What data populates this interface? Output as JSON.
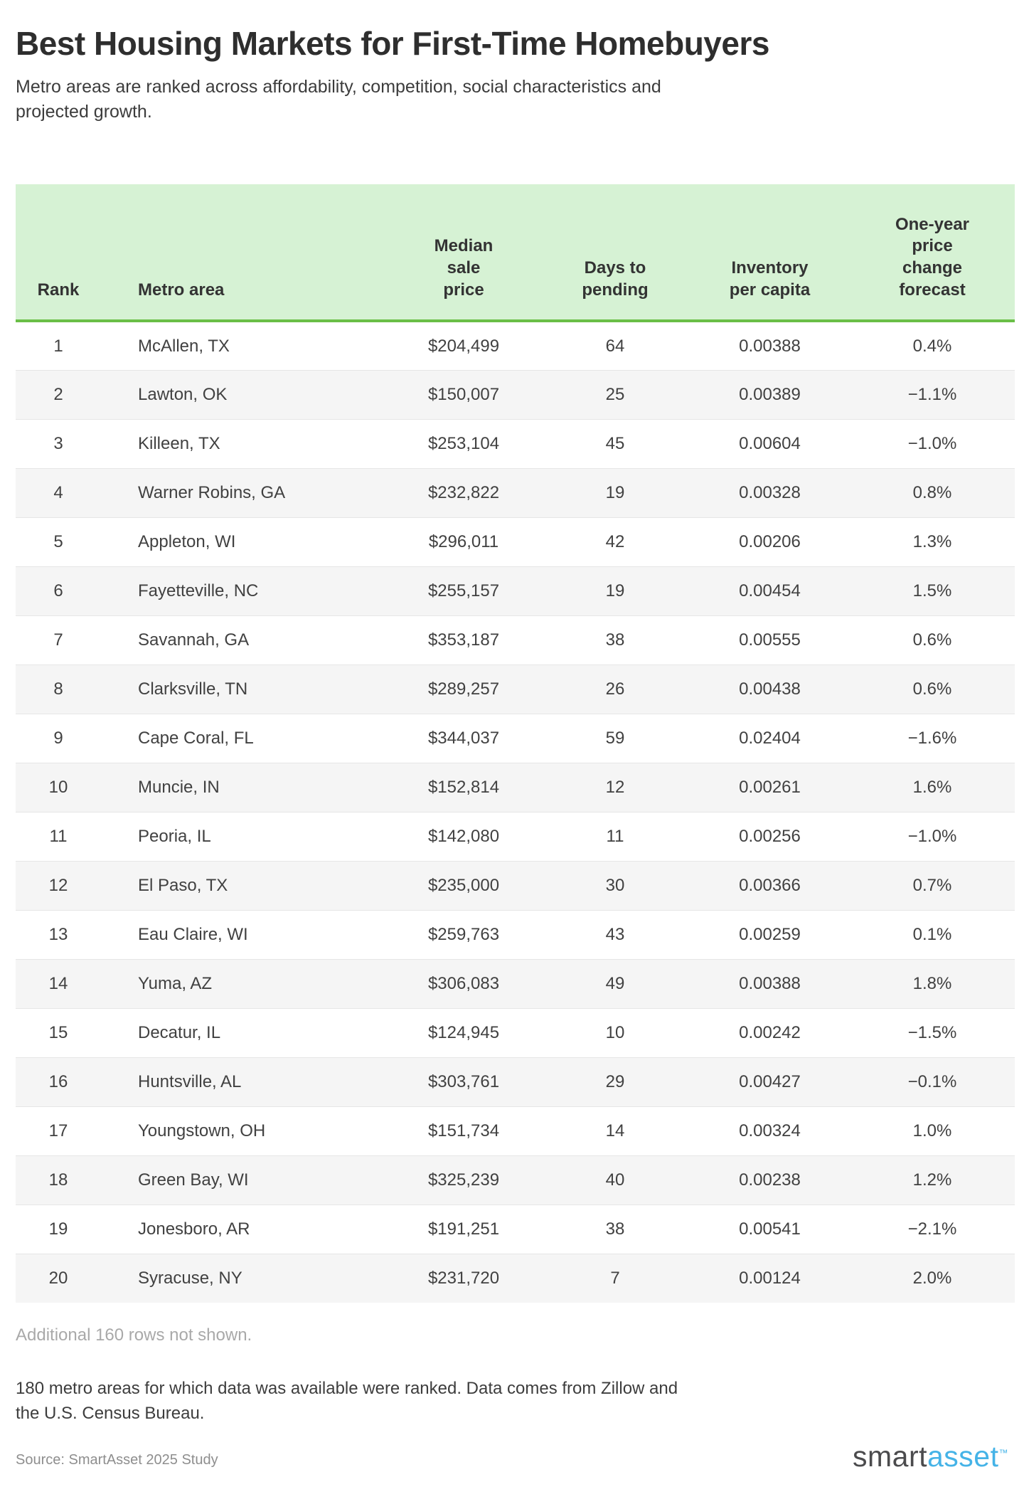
{
  "header": {
    "title": "Best Housing Markets for First-Time Homebuyers",
    "subtitle": "Metro areas are ranked across affordability, competition, social characteristics and projected growth."
  },
  "chart_data": {
    "type": "table",
    "title": "Best Housing Markets for First-Time Homebuyers",
    "columns": [
      "Rank",
      "Metro area",
      "Median sale price",
      "Days to pending",
      "Inventory per capita",
      "One-year price change forecast"
    ],
    "rows": [
      [
        "1",
        "McAllen, TX",
        "$204,499",
        "64",
        "0.00388",
        "0.4%"
      ],
      [
        "2",
        "Lawton, OK",
        "$150,007",
        "25",
        "0.00389",
        "−1.1%"
      ],
      [
        "3",
        "Killeen, TX",
        "$253,104",
        "45",
        "0.00604",
        "−1.0%"
      ],
      [
        "4",
        "Warner Robins, GA",
        "$232,822",
        "19",
        "0.00328",
        "0.8%"
      ],
      [
        "5",
        "Appleton, WI",
        "$296,011",
        "42",
        "0.00206",
        "1.3%"
      ],
      [
        "6",
        "Fayetteville, NC",
        "$255,157",
        "19",
        "0.00454",
        "1.5%"
      ],
      [
        "7",
        "Savannah, GA",
        "$353,187",
        "38",
        "0.00555",
        "0.6%"
      ],
      [
        "8",
        "Clarksville, TN",
        "$289,257",
        "26",
        "0.00438",
        "0.6%"
      ],
      [
        "9",
        "Cape Coral, FL",
        "$344,037",
        "59",
        "0.02404",
        "−1.6%"
      ],
      [
        "10",
        "Muncie, IN",
        "$152,814",
        "12",
        "0.00261",
        "1.6%"
      ],
      [
        "11",
        "Peoria, IL",
        "$142,080",
        "11",
        "0.00256",
        "−1.0%"
      ],
      [
        "12",
        "El Paso, TX",
        "$235,000",
        "30",
        "0.00366",
        "0.7%"
      ],
      [
        "13",
        "Eau Claire, WI",
        "$259,763",
        "43",
        "0.00259",
        "0.1%"
      ],
      [
        "14",
        "Yuma, AZ",
        "$306,083",
        "49",
        "0.00388",
        "1.8%"
      ],
      [
        "15",
        "Decatur, IL",
        "$124,945",
        "10",
        "0.00242",
        "−1.5%"
      ],
      [
        "16",
        "Huntsville, AL",
        "$303,761",
        "29",
        "0.00427",
        "−0.1%"
      ],
      [
        "17",
        "Youngstown, OH",
        "$151,734",
        "14",
        "0.00324",
        "1.0%"
      ],
      [
        "18",
        "Green Bay, WI",
        "$325,239",
        "40",
        "0.00238",
        "1.2%"
      ],
      [
        "19",
        "Jonesboro, AR",
        "$191,251",
        "38",
        "0.00541",
        "−2.1%"
      ],
      [
        "20",
        "Syracuse, NY",
        "$231,720",
        "7",
        "0.00124",
        "2.0%"
      ]
    ]
  },
  "footer": {
    "additional_note": "Additional 160 rows not shown.",
    "methodology": "180 metro areas for which data was available were ranked. Data comes from Zillow and the U.S. Census Bureau.",
    "source": "Source: SmartAsset 2025 Study"
  },
  "logo": {
    "smart": "smart",
    "asset": "asset",
    "tm": "™"
  },
  "colors": {
    "header_bg": "#d6f2d4",
    "header_border": "#6abf47",
    "row_alt": "#f5f5f5",
    "logo_blue": "#45b3e7"
  }
}
